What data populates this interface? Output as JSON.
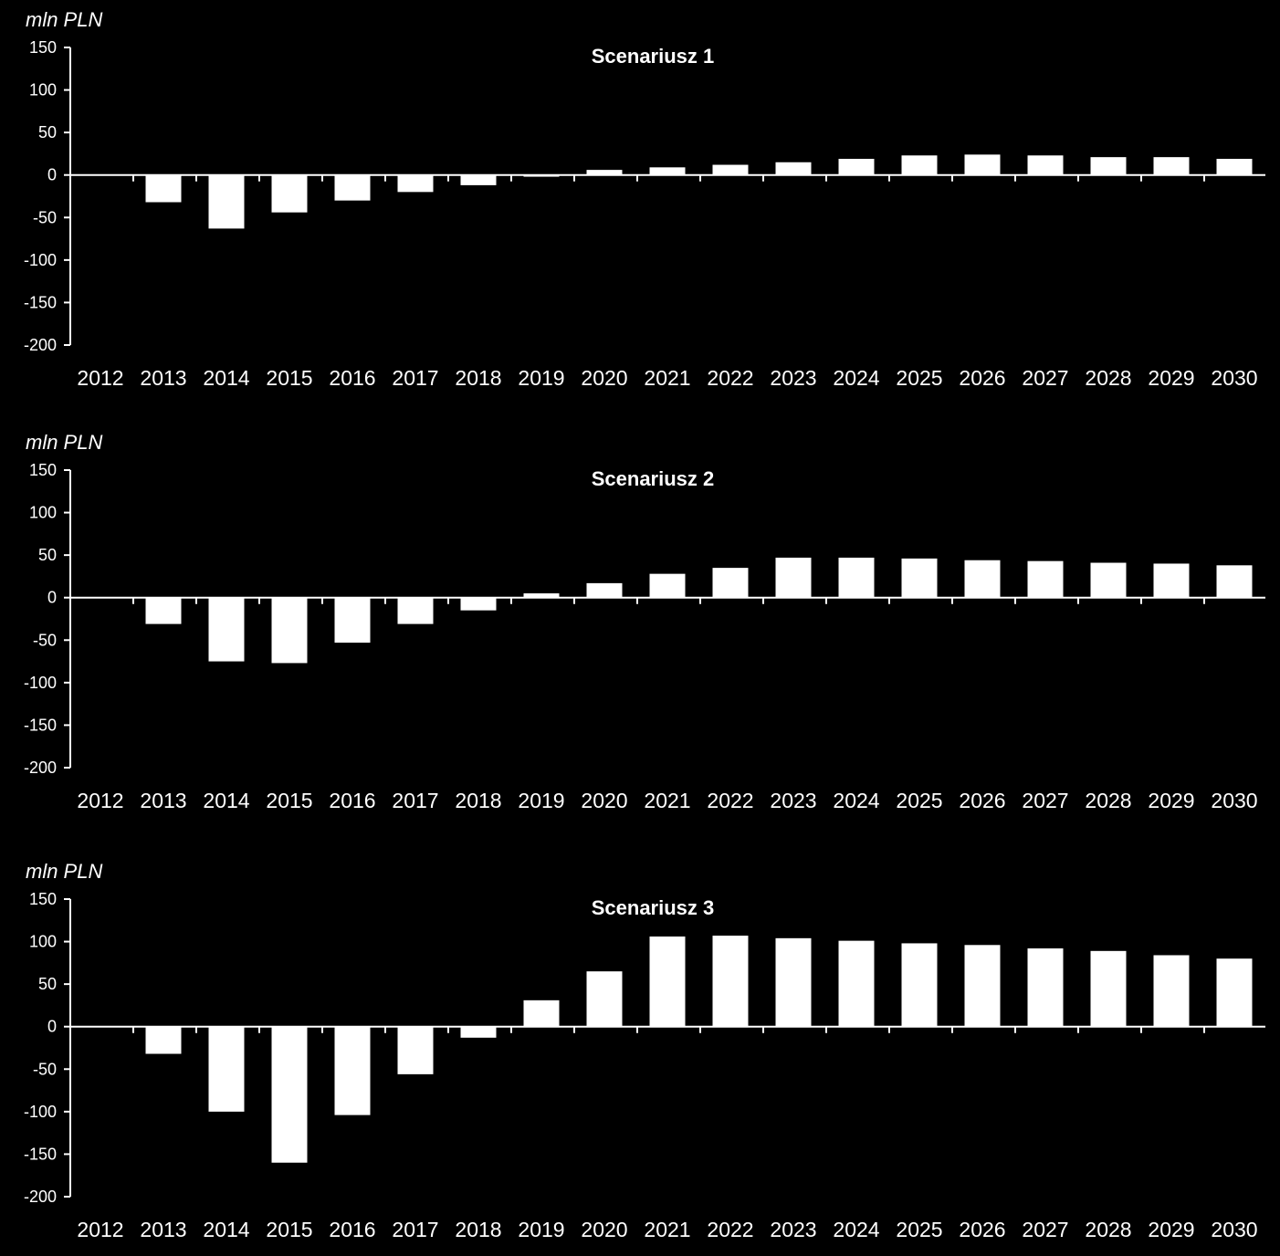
{
  "colors": {
    "background": "#000000",
    "bar": "#ffffff",
    "axis": "#ffffff",
    "text": "#ffffff"
  },
  "chart_data": [
    {
      "type": "bar",
      "title": "Scenariusz 1",
      "ylabel": "mln PLN",
      "xlabel": "",
      "ylim": [
        -200,
        150
      ],
      "yticks": [
        150,
        100,
        50,
        0,
        -50,
        -100,
        -150,
        -200
      ],
      "grid": false,
      "categories": [
        "2012",
        "2013",
        "2014",
        "2015",
        "2016",
        "2017",
        "2018",
        "2019",
        "2020",
        "2021",
        "2022",
        "2023",
        "2024",
        "2025",
        "2026",
        "2027",
        "2028",
        "2029",
        "2030"
      ],
      "values": [
        0,
        -32,
        -63,
        -44,
        -30,
        -20,
        -12,
        -2,
        6,
        9,
        12,
        15,
        19,
        23,
        24,
        23,
        21,
        21,
        19
      ]
    },
    {
      "type": "bar",
      "title": "Scenariusz 2",
      "ylabel": "mln PLN",
      "xlabel": "",
      "ylim": [
        -200,
        150
      ],
      "yticks": [
        150,
        100,
        50,
        0,
        -50,
        -100,
        -150,
        -200
      ],
      "grid": false,
      "categories": [
        "2012",
        "2013",
        "2014",
        "2015",
        "2016",
        "2017",
        "2018",
        "2019",
        "2020",
        "2021",
        "2022",
        "2023",
        "2024",
        "2025",
        "2026",
        "2027",
        "2028",
        "2029",
        "2030"
      ],
      "values": [
        0,
        -31,
        -75,
        -77,
        -53,
        -31,
        -15,
        5,
        17,
        28,
        35,
        47,
        47,
        46,
        44,
        43,
        41,
        40,
        38
      ]
    },
    {
      "type": "bar",
      "title": "Scenariusz 3",
      "ylabel": "mln PLN",
      "xlabel": "",
      "ylim": [
        -200,
        150
      ],
      "yticks": [
        150,
        100,
        50,
        0,
        -50,
        -100,
        -150,
        -200
      ],
      "grid": false,
      "categories": [
        "2012",
        "2013",
        "2014",
        "2015",
        "2016",
        "2017",
        "2018",
        "2019",
        "2020",
        "2021",
        "2022",
        "2023",
        "2024",
        "2025",
        "2026",
        "2027",
        "2028",
        "2029",
        "2030"
      ],
      "values": [
        0,
        -32,
        -100,
        -160,
        -104,
        -56,
        -13,
        31,
        65,
        106,
        107,
        104,
        101,
        98,
        96,
        92,
        89,
        84,
        80
      ]
    }
  ]
}
